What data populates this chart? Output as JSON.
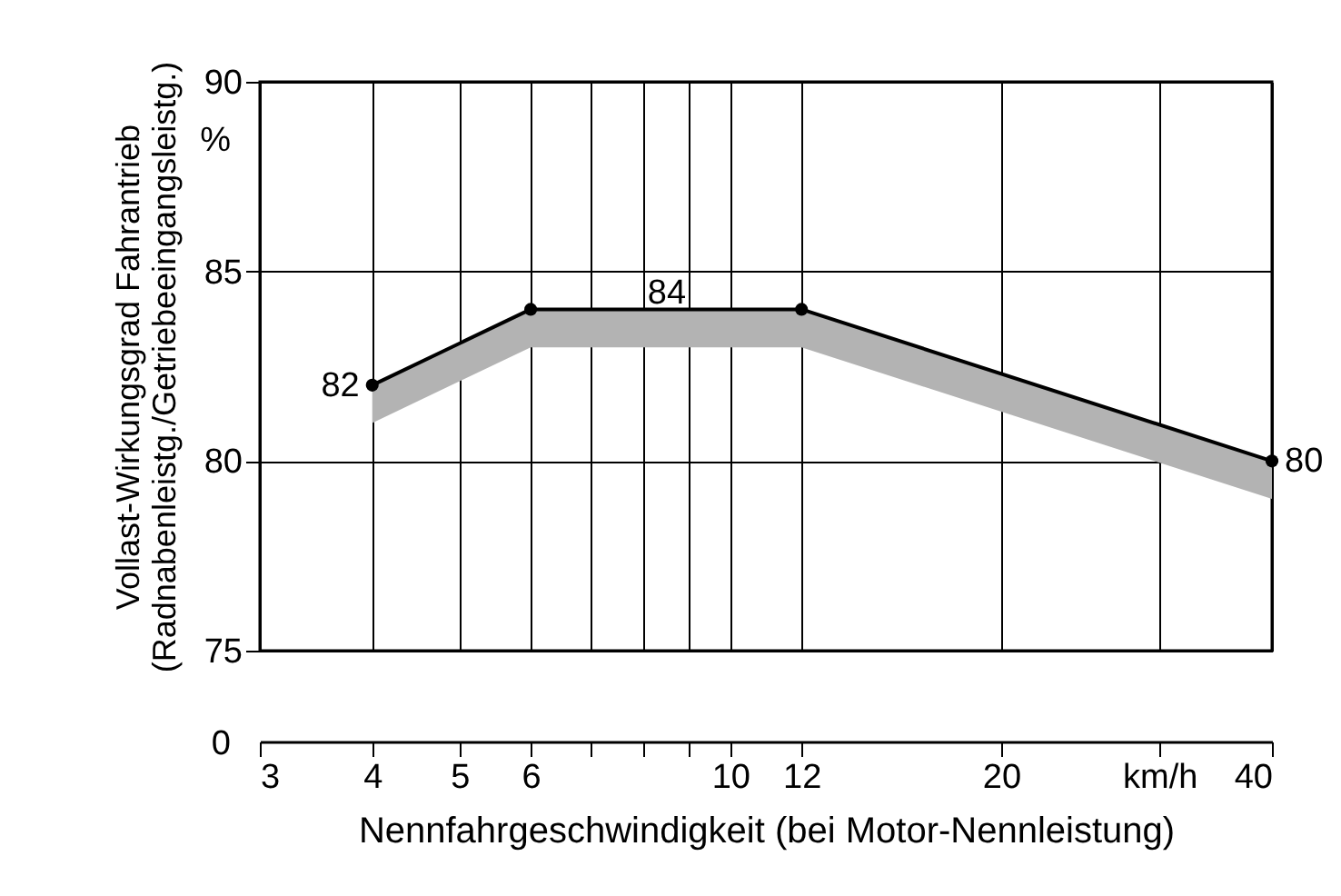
{
  "chart_data": {
    "type": "line",
    "xlabel": "Nennfahrgeschwindigkeit  (bei Motor-Nennleistung)",
    "ylabel": "Vollast-Wirkungsgrad Fahrantrieb\n(Radnabenleistg./Getriebeeingangsleistg.)",
    "x": [
      4,
      6,
      12,
      40
    ],
    "series": [
      {
        "color": "#000000",
        "values": [
          82,
          84,
          84,
          80
        ],
        "lower": [
          81,
          83,
          83,
          79
        ],
        "upper": [
          82,
          84,
          84,
          80
        ]
      }
    ],
    "value_labels": [
      "82",
      null,
      null,
      "80"
    ],
    "annotations": [
      {
        "text": "84",
        "x": 8.5,
        "y": 84
      },
      "%",
      "0"
    ],
    "log": "x",
    "xlim": [
      3,
      40
    ],
    "xticks": [
      3,
      4,
      5,
      6,
      {
        "value": 7,
        "label": null
      },
      {
        "value": 8,
        "label": null
      },
      {
        "value": 9,
        "label": null
      },
      10,
      12,
      20,
      {
        "value": 30,
        "label": "km/h"
      },
      40
    ],
    "ylim": [
      75,
      90
    ],
    "yticks": [
      75,
      80,
      85,
      90
    ],
    "grid": true,
    "marker": "circle",
    "line_style": "solid"
  }
}
